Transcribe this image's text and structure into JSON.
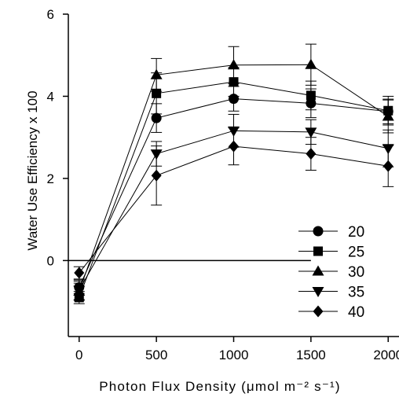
{
  "chart_data": {
    "type": "line",
    "xlabel": "Photon Flux Density (μmol m⁻² s⁻¹)",
    "ylabel": "Water Use Efficiency x 100",
    "xlim": [
      -70,
      2070
    ],
    "ylim": [
      -1.85,
      6
    ],
    "x_ticks": [
      0,
      500,
      1000,
      1500,
      2000
    ],
    "y_ticks": [
      0,
      2,
      4,
      6
    ],
    "x_tick_labels": [
      "0",
      "500",
      "1000",
      "1500",
      "2000"
    ],
    "y_tick_labels": [
      "0",
      "2",
      "4",
      "6"
    ],
    "zero_line": {
      "y": 0,
      "x_from": -70,
      "x_to": 1500
    },
    "grid": false,
    "legend": {
      "position": "bottom-right",
      "entries": [
        "20",
        "25",
        "30",
        "35",
        "40"
      ]
    },
    "x": [
      0,
      500,
      1000,
      1500,
      2000
    ],
    "series": [
      {
        "name": "20",
        "marker": "circle",
        "values": [
          -0.65,
          3.47,
          3.94,
          3.83,
          3.63
        ],
        "errors": [
          0.15,
          0.35,
          0.3,
          0.35,
          0.3
        ]
      },
      {
        "name": "25",
        "marker": "square",
        "values": [
          -0.9,
          4.07,
          4.35,
          4.02,
          3.65
        ],
        "errors": [
          0.15,
          0.5,
          0.35,
          0.35,
          0.35
        ]
      },
      {
        "name": "30",
        "marker": "triangle-up",
        "values": [
          -0.75,
          4.52,
          4.76,
          4.77,
          3.51
        ],
        "errors": [
          0.2,
          0.4,
          0.45,
          0.5,
          0.4
        ]
      },
      {
        "name": "35",
        "marker": "triangle-down",
        "values": [
          -0.72,
          2.6,
          3.16,
          3.13,
          2.73
        ],
        "errors": [
          0.25,
          0.3,
          0.4,
          0.3,
          0.45
        ]
      },
      {
        "name": "40",
        "marker": "diamond",
        "values": [
          -0.3,
          2.07,
          2.78,
          2.6,
          2.3
        ],
        "errors": [
          0.15,
          0.72,
          0.45,
          0.4,
          0.5
        ]
      }
    ]
  }
}
